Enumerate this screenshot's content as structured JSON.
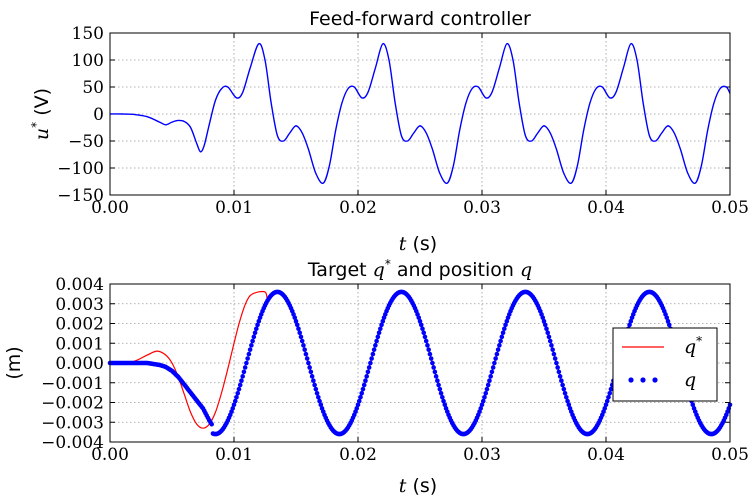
{
  "chart_data": [
    {
      "type": "line",
      "title": "Feed-forward controller",
      "xlabel": {
        "var": "t",
        "unit": " (s)"
      },
      "ylabel": {
        "var": "u",
        "sup": "*",
        "unit": " (V)"
      },
      "xlim": [
        0,
        0.05
      ],
      "ylim": [
        -150,
        150
      ],
      "xticks": [
        "0.00",
        "0.01",
        "0.02",
        "0.03",
        "0.04",
        "0.05"
      ],
      "yticks": [
        "150",
        "100",
        "50",
        "0",
        "−50",
        "−100",
        "−150"
      ],
      "grid": true,
      "series": [
        {
          "color": "#0000ff",
          "points": [
            [
              0,
              0
            ],
            [
              0.001,
              0
            ],
            [
              0.002,
              -1
            ],
            [
              0.003,
              -5
            ],
            [
              0.004,
              -15
            ],
            [
              0.0045,
              -20
            ],
            [
              0.005,
              -15
            ],
            [
              0.0055,
              -12
            ],
            [
              0.006,
              -14
            ],
            [
              0.0065,
              -25
            ],
            [
              0.007,
              -55
            ],
            [
              0.0073,
              -70
            ],
            [
              0.0076,
              -58
            ],
            [
              0.008,
              -20
            ],
            [
              0.0085,
              25
            ],
            [
              0.009,
              47
            ],
            [
              0.0095,
              50
            ],
            [
              0.0102,
              30
            ],
            [
              0.0107,
              40
            ],
            [
              0.0113,
              85
            ],
            [
              0.012,
              130
            ],
            [
              0.0125,
              100
            ],
            [
              0.013,
              20
            ],
            [
              0.0135,
              -40
            ],
            [
              0.014,
              -50
            ],
            [
              0.0145,
              -35
            ],
            [
              0.015,
              -22
            ],
            [
              0.0155,
              -35
            ],
            [
              0.016,
              -65
            ],
            [
              0.0166,
              -110
            ],
            [
              0.0172,
              -128
            ],
            [
              0.0177,
              -95
            ],
            [
              0.0182,
              -30
            ],
            [
              0.0187,
              20
            ],
            [
              0.0192,
              47
            ],
            [
              0.0197,
              50
            ],
            [
              0.0203,
              30
            ],
            [
              0.0208,
              40
            ],
            [
              0.0214,
              85
            ],
            [
              0.022,
              130
            ],
            [
              0.0225,
              100
            ],
            [
              0.023,
              20
            ],
            [
              0.0235,
              -40
            ],
            [
              0.024,
              -50
            ],
            [
              0.0245,
              -35
            ],
            [
              0.025,
              -22
            ],
            [
              0.0255,
              -35
            ],
            [
              0.026,
              -65
            ],
            [
              0.0266,
              -110
            ],
            [
              0.0272,
              -128
            ],
            [
              0.0277,
              -95
            ],
            [
              0.0282,
              -30
            ],
            [
              0.0287,
              20
            ],
            [
              0.0292,
              47
            ],
            [
              0.0297,
              50
            ],
            [
              0.0303,
              30
            ],
            [
              0.0308,
              40
            ],
            [
              0.0314,
              85
            ],
            [
              0.032,
              130
            ],
            [
              0.0325,
              100
            ],
            [
              0.033,
              20
            ],
            [
              0.0335,
              -40
            ],
            [
              0.034,
              -50
            ],
            [
              0.0345,
              -35
            ],
            [
              0.035,
              -22
            ],
            [
              0.0355,
              -35
            ],
            [
              0.036,
              -65
            ],
            [
              0.0366,
              -110
            ],
            [
              0.0372,
              -128
            ],
            [
              0.0377,
              -95
            ],
            [
              0.0382,
              -30
            ],
            [
              0.0387,
              20
            ],
            [
              0.0392,
              47
            ],
            [
              0.0397,
              50
            ],
            [
              0.0403,
              30
            ],
            [
              0.0408,
              40
            ],
            [
              0.0414,
              85
            ],
            [
              0.042,
              130
            ],
            [
              0.0425,
              100
            ],
            [
              0.043,
              20
            ],
            [
              0.0435,
              -40
            ],
            [
              0.044,
              -50
            ],
            [
              0.0445,
              -35
            ],
            [
              0.045,
              -22
            ],
            [
              0.0455,
              -35
            ],
            [
              0.046,
              -65
            ],
            [
              0.0466,
              -110
            ],
            [
              0.0472,
              -128
            ],
            [
              0.0477,
              -95
            ],
            [
              0.0482,
              -30
            ],
            [
              0.0487,
              20
            ],
            [
              0.0492,
              47
            ],
            [
              0.0497,
              50
            ],
            [
              0.05,
              38
            ]
          ]
        }
      ]
    },
    {
      "type": "line",
      "title": {
        "text": "Target ",
        "q1": "q",
        "sup": "*",
        "mid": " and position ",
        "q2": "q"
      },
      "xlabel": {
        "var": "t",
        "unit": " (s)"
      },
      "ylabel": "(m)",
      "xlim": [
        0,
        0.05
      ],
      "ylim": [
        -0.004,
        0.004
      ],
      "xticks": [
        "0.00",
        "0.01",
        "0.02",
        "0.03",
        "0.04",
        "0.05"
      ],
      "yticks": [
        "0.004",
        "0.003",
        "0.002",
        "0.001",
        "0.000",
        "−0.001",
        "−0.002",
        "−0.003",
        "−0.004"
      ],
      "grid": true,
      "legend": {
        "position": "center-right"
      },
      "series": [
        {
          "label": {
            "var": "q",
            "sup": "*"
          },
          "color": "#ff0000",
          "style": "line",
          "points": [
            [
              0,
              0
            ],
            [
              0.001,
              0
            ],
            [
              0.002,
              0.0001
            ],
            [
              0.003,
              0.0004
            ],
            [
              0.0038,
              0.0006
            ],
            [
              0.0045,
              0.0004
            ],
            [
              0.005,
              0
            ],
            [
              0.0055,
              -0.0007
            ],
            [
              0.006,
              -0.0016
            ],
            [
              0.0065,
              -0.0025
            ],
            [
              0.007,
              -0.0031
            ],
            [
              0.0075,
              -0.0033
            ],
            [
              0.008,
              -0.0031
            ],
            [
              0.0085,
              -0.0025
            ],
            [
              0.009,
              -0.0015
            ],
            [
              0.0095,
              -0.0003
            ],
            [
              0.01,
              0.001
            ],
            [
              0.0105,
              0.0022
            ],
            [
              0.011,
              0.0031
            ],
            [
              0.0115,
              0.0035
            ],
            [
              0.0125,
              0.0036
            ]
          ]
        },
        {
          "label": {
            "var": "q",
            "sup": ""
          },
          "color": "#0000ff",
          "style": "dots",
          "model": {
            "t_start": 0.0045,
            "t_align": 0.0085,
            "period": 0.01,
            "amp": 0.0036
          },
          "points_early": [
            [
              0,
              0
            ],
            [
              0.001,
              0
            ],
            [
              0.002,
              0
            ],
            [
              0.003,
              0
            ],
            [
              0.004,
              -0.0001
            ],
            [
              0.0045,
              -0.0002
            ],
            [
              0.005,
              -0.0004
            ],
            [
              0.0055,
              -0.0007
            ],
            [
              0.006,
              -0.0011
            ],
            [
              0.0065,
              -0.0015
            ],
            [
              0.007,
              -0.0019
            ],
            [
              0.0075,
              -0.0023
            ],
            [
              0.008,
              -0.0029
            ],
            [
              0.0083,
              -0.0032
            ]
          ]
        }
      ]
    }
  ]
}
